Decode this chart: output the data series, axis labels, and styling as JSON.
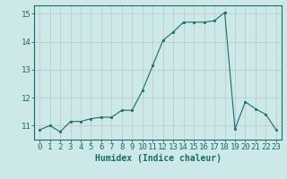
{
  "x": [
    0,
    1,
    2,
    3,
    4,
    5,
    6,
    7,
    8,
    9,
    10,
    11,
    12,
    13,
    14,
    15,
    16,
    17,
    18,
    19,
    20,
    21,
    22,
    23
  ],
  "y": [
    10.85,
    11.0,
    10.78,
    11.15,
    11.15,
    11.25,
    11.3,
    11.3,
    11.55,
    11.55,
    12.25,
    13.15,
    14.05,
    14.35,
    14.7,
    14.7,
    14.7,
    14.75,
    15.05,
    10.88,
    11.85,
    11.6,
    11.4,
    10.85
  ],
  "xlabel": "Humidex (Indice chaleur)",
  "xlim": [
    -0.5,
    23.5
  ],
  "ylim": [
    10.5,
    15.3
  ],
  "yticks": [
    11,
    12,
    13,
    14,
    15
  ],
  "xticks": [
    0,
    1,
    2,
    3,
    4,
    5,
    6,
    7,
    8,
    9,
    10,
    11,
    12,
    13,
    14,
    15,
    16,
    17,
    18,
    19,
    20,
    21,
    22,
    23
  ],
  "line_color": "#1a6b6b",
  "marker_color": "#1a6b6b",
  "bg_color": "#cce8e8",
  "grid_color": "#b8c8c8",
  "axis_color": "#1a6b6b",
  "tick_color": "#1a6b6b",
  "label_color": "#1a6b6b",
  "xlabel_fontsize": 7,
  "tick_fontsize": 6.5
}
